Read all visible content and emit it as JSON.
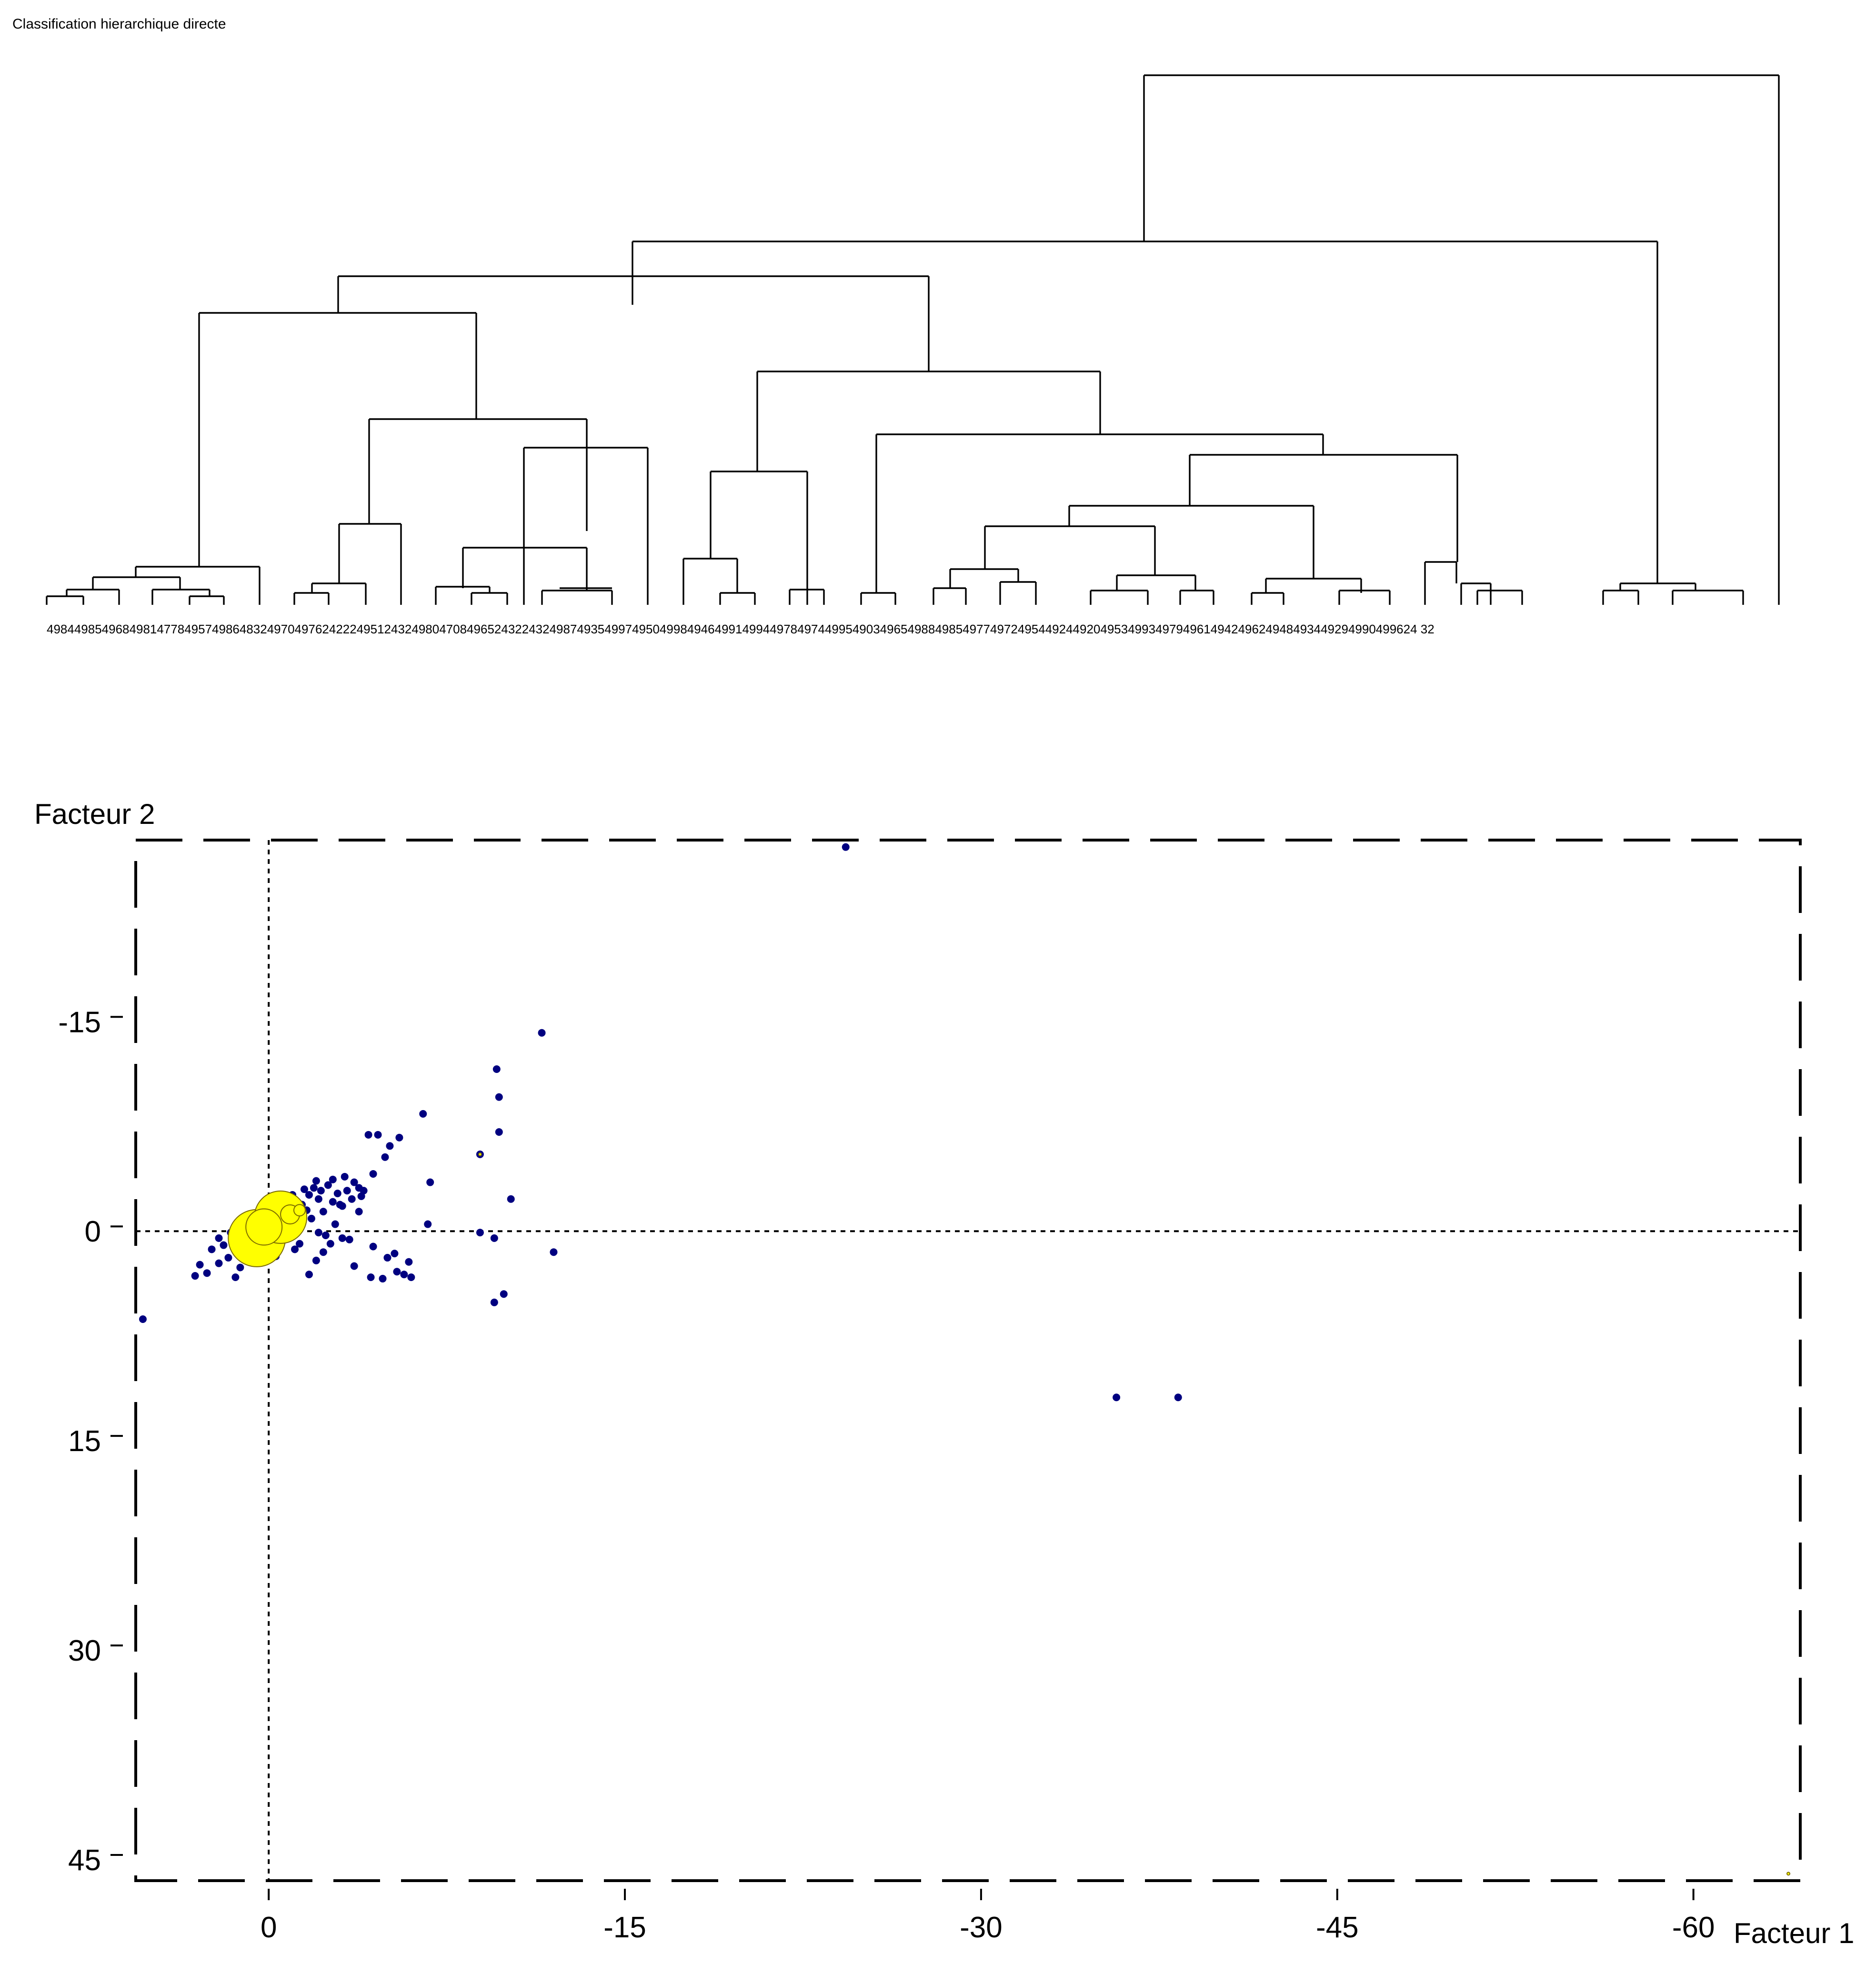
{
  "chart_data": [
    {
      "type": "dendrogram",
      "title": "Classification hierarchique directe",
      "leaf_labels": "4984498549684981477849574986483249704976242224951243249804708496524322432498749354997495049984946499149944978497449954903496549884985497749724954492449204953499349794961494249624948493449294990499624 32",
      "leaves": [
        "4984",
        "4985",
        "4968",
        "4981",
        "4778",
        "4957",
        "4986",
        "4832",
        "4970",
        "4976",
        "2422",
        "4951",
        "2432",
        "4980",
        "4708",
        "4965",
        "2432",
        "2432",
        "4987",
        "4935",
        "4997",
        "4950",
        "4998",
        "4946",
        "4991",
        "4994",
        "4978",
        "4974",
        "4995",
        "4903",
        "4965",
        "4988",
        "4985",
        "4977",
        "4972",
        "4954",
        "4924",
        "4920",
        "4953",
        "4993",
        "4979",
        "4961",
        "4942",
        "4962",
        "4948",
        "4934",
        "4929",
        "4990",
        "4996",
        "2432"
      ]
    },
    {
      "type": "scatter",
      "xlabel": "Facteur 1",
      "ylabel": "Facteur 2",
      "xticks": [
        0,
        -15,
        -30,
        -45,
        -60
      ],
      "yticks": [
        -15,
        0,
        15,
        30,
        45
      ],
      "xlim": [
        5.6,
        -64.5
      ],
      "ylim": [
        -28,
        46.5
      ],
      "origin_lines": true,
      "series": [
        {
          "color": "#000080",
          "points": [
            [
              -24.3,
              -27.5
            ],
            [
              -11.5,
              -14.2
            ],
            [
              -9.6,
              -11.6
            ],
            [
              -9.7,
              -9.6
            ],
            [
              -9.7,
              -7.1
            ],
            [
              -6.5,
              -8.4
            ],
            [
              -8.9,
              -5.5
            ],
            [
              -10.2,
              -2.3
            ],
            [
              -6.8,
              -3.5
            ],
            [
              -6.7,
              -0.5
            ],
            [
              -9.5,
              0.5
            ],
            [
              -8.9,
              0.1
            ],
            [
              -12.0,
              1.5
            ],
            [
              -9.9,
              4.5
            ],
            [
              -9.5,
              5.1
            ],
            [
              -5.5,
              -6.7
            ],
            [
              -5.1,
              -6.1
            ],
            [
              -4.6,
              -6.9
            ],
            [
              -4.2,
              -6.9
            ],
            [
              -4.9,
              -5.3
            ],
            [
              -4.4,
              -4.1
            ],
            [
              -3.6,
              -3.5
            ],
            [
              -3.9,
              -2.5
            ],
            [
              -3.1,
              -1.8
            ],
            [
              -3.8,
              -1.4
            ],
            [
              -4.4,
              1.1
            ],
            [
              -5.0,
              1.9
            ],
            [
              -5.4,
              2.9
            ],
            [
              -5.3,
              1.6
            ],
            [
              -6.0,
              3.3
            ],
            [
              -4.3,
              3.3
            ],
            [
              -4.8,
              3.4
            ],
            [
              -5.7,
              3.1
            ],
            [
              -5.9,
              2.2
            ],
            [
              -3.1,
              0.5
            ],
            [
              -3.4,
              0.6
            ],
            [
              -2.6,
              0.9
            ],
            [
              -2.3,
              1.5
            ],
            [
              -2.0,
              2.1
            ],
            [
              -1.7,
              3.1
            ],
            [
              -3.6,
              2.5
            ],
            [
              -2.1,
              0.1
            ],
            [
              -1.1,
              1.3
            ],
            [
              -0.3,
              1.8
            ],
            [
              0.5,
              1.7
            ],
            [
              1.2,
              2.6
            ],
            [
              2.6,
              3.0
            ],
            [
              1.4,
              3.3
            ],
            [
              3.1,
              3.2
            ],
            [
              2.9,
              2.4
            ],
            [
              2.1,
              2.3
            ],
            [
              5.3,
              6.3
            ],
            [
              -35.7,
              11.9
            ],
            [
              -38.3,
              11.9
            ],
            [
              -2.1,
              -2.3
            ],
            [
              -1.4,
              -1.9
            ],
            [
              -0.9,
              -1.1
            ],
            [
              -0.3,
              -0.4
            ],
            [
              -1.9,
              -3.1
            ],
            [
              -2.5,
              -3.3
            ],
            [
              -2.9,
              -2.7
            ],
            [
              -3.3,
              -2.9
            ],
            [
              -2.7,
              -2.1
            ],
            [
              -1.6,
              -1.5
            ],
            [
              -1.0,
              -2.6
            ],
            [
              -0.6,
              -1.3
            ],
            [
              0.2,
              -0.2
            ],
            [
              0.8,
              0.3
            ],
            [
              1.4,
              0.6
            ],
            [
              1.9,
              1.0
            ],
            [
              2.4,
              1.3
            ],
            [
              0.3,
              0.7
            ],
            [
              1.0,
              1.5
            ],
            [
              1.7,
              1.9
            ],
            [
              -0.8,
              0.4
            ],
            [
              -1.2,
              -0.4
            ],
            [
              -1.8,
              -0.9
            ],
            [
              -2.3,
              -1.4
            ],
            [
              -3.0,
              -1.9
            ],
            [
              -3.5,
              -2.3
            ],
            [
              -2.7,
              -3.7
            ],
            [
              -3.2,
              -3.9
            ],
            [
              -2.0,
              -3.6
            ],
            [
              -1.5,
              -3.0
            ],
            [
              0.6,
              -0.9
            ],
            [
              1.1,
              -0.4
            ],
            [
              1.6,
              0.1
            ],
            [
              2.1,
              0.5
            ],
            [
              0.1,
              1.1
            ],
            [
              -0.4,
              1.4
            ],
            [
              -1.3,
              0.9
            ],
            [
              -2.4,
              0.3
            ],
            [
              -2.8,
              -0.5
            ],
            [
              -3.8,
              -3.1
            ],
            [
              -4.0,
              -2.9
            ],
            [
              -1.1,
              -2.2
            ],
            [
              -0.2,
              -1.7
            ],
            [
              0.4,
              -1.2
            ],
            [
              -1.7,
              -2.6
            ],
            [
              -2.2,
              -2.9
            ]
          ]
        },
        {
          "color": "#ffff00",
          "points": [
            [
              0.5,
              0.5
            ],
            [
              -0.5,
              -1.0
            ],
            [
              0.2,
              -0.3
            ],
            [
              -0.9,
              -1.2
            ],
            [
              -1.3,
              -1.5
            ],
            [
              -8.9,
              -5.5
            ],
            [
              -64.0,
              46.0
            ]
          ],
          "sizes": [
            60,
            55,
            38,
            20,
            12,
            3,
            3
          ]
        }
      ]
    }
  ]
}
